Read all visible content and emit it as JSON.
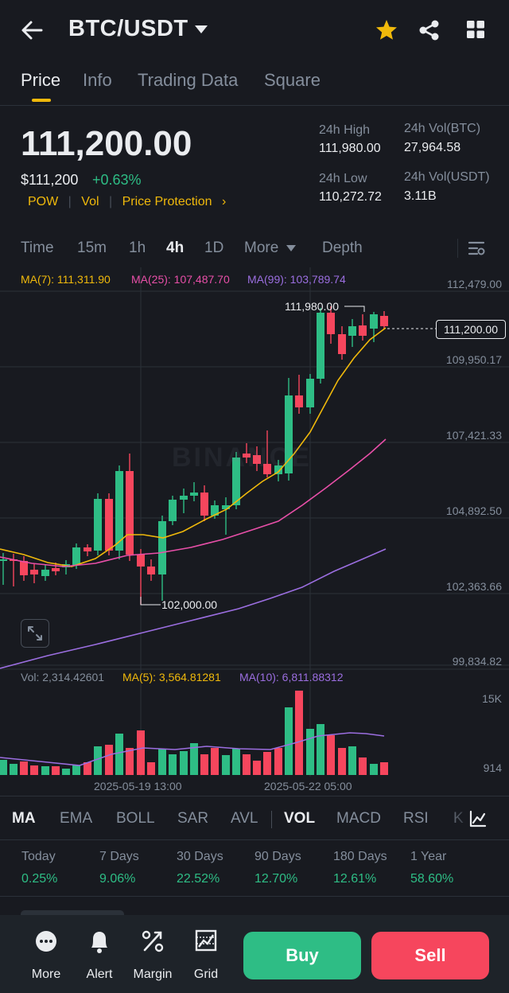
{
  "header": {
    "pair": "BTC/USDT"
  },
  "tabs": [
    "Price",
    "Info",
    "Trading Data",
    "Square"
  ],
  "price": {
    "last": "111,200.00",
    "usd": "$111,200",
    "change": "+0.63%",
    "tags": [
      "POW",
      "Vol",
      "Price Protection"
    ]
  },
  "stats": {
    "high_label": "24h High",
    "high": "111,980.00",
    "low_label": "24h Low",
    "low": "110,272.72",
    "vol_btc_label": "24h Vol(BTC)",
    "vol_btc": "27,964.58",
    "vol_usdt_label": "24h Vol(USDT)",
    "vol_usdt": "3.11B"
  },
  "timeframes": [
    "Time",
    "15m",
    "1h",
    "4h",
    "1D",
    "More",
    "Depth"
  ],
  "ma_legend": {
    "ma7": "MA(7): 111,311.90",
    "ma25": "MA(25): 107,487.70",
    "ma99": "MA(99): 103,789.74"
  },
  "vol_legend": {
    "vol": "Vol: 2,314.42601",
    "ma5": "MA(5): 3,564.81281",
    "ma10": "MA(10): 6,811.88312"
  },
  "y_labels": [
    "112,479.00",
    "109,950.17",
    "107,421.33",
    "104,892.50",
    "102,363.66",
    "99,834.82"
  ],
  "vol_labels": [
    "15K",
    "914"
  ],
  "x_labels": [
    "2025-05-19 13:00",
    "2025-05-22 05:00"
  ],
  "annotations": {
    "high": "111,980.00",
    "low": "102,000.00",
    "current": "111,200.00"
  },
  "watermark": "BINANCE",
  "indicators": [
    "MA",
    "EMA",
    "BOLL",
    "SAR",
    "AVL",
    "VOL",
    "MACD",
    "RSI",
    "K"
  ],
  "performance": [
    {
      "label": "Today",
      "value": "0.25%"
    },
    {
      "label": "7 Days",
      "value": "9.06%"
    },
    {
      "label": "30 Days",
      "value": "22.52%"
    },
    {
      "label": "90 Days",
      "value": "12.70%"
    },
    {
      "label": "180 Days",
      "value": "12.61%"
    },
    {
      "label": "1 Year",
      "value": "58.60%"
    }
  ],
  "bottom_nav": [
    "More",
    "Alert",
    "Margin",
    "Grid"
  ],
  "actions": {
    "buy": "Buy",
    "sell": "Sell"
  },
  "colors": {
    "up": "#2ebd85",
    "down": "#f6465d",
    "accent": "#f0b90b",
    "ma7": "#f0b90b",
    "ma25": "#e84fa8",
    "ma99": "#9b6ee0"
  }
}
